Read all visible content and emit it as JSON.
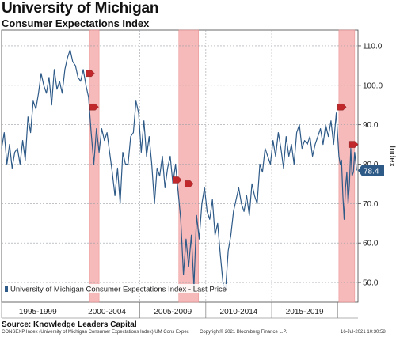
{
  "header": {
    "title": "University of Michigan",
    "subtitle": "Consumer Expectations Index"
  },
  "footer": {
    "source": "Source: Knowledge Leaders Capital",
    "ticker": "CONSEXP Index (University of Michigan Consumer Expectations Index) UM Cons Expec",
    "copyright": "Copyright© 2021 Bloomberg Finance L.P.",
    "date": "16-Jul-2021 10:30:58"
  },
  "colors": {
    "line": "#2e5a88",
    "recession": "#f6b3b3",
    "recession_edge": "#e88c8c",
    "marker": "#c0282b",
    "grid": "#9aa0a6",
    "last_price_box": "#2e5a88"
  },
  "chart_data": {
    "type": "line",
    "title": "University of Michigan",
    "subtitle": "Consumer Expectations Index",
    "ylabel": "Index",
    "ylim": [
      45,
      114
    ],
    "yticks": [
      50,
      60,
      70,
      80,
      90,
      100,
      110
    ],
    "ytick_labels": [
      "50.0",
      "60.0",
      "70.0",
      "80.0",
      "90.0",
      "100.0",
      "110.0"
    ],
    "xlim": [
      1994.5,
      2021.55
    ],
    "x_bands": [
      {
        "label": "1995-1999",
        "start": 1994.5,
        "end": 2000.0
      },
      {
        "label": "2000-2004",
        "start": 2000.0,
        "end": 2005.0
      },
      {
        "label": "2005-2009",
        "start": 2005.0,
        "end": 2010.0
      },
      {
        "label": "2010-2014",
        "start": 2010.0,
        "end": 2015.0
      },
      {
        "label": "2015-2019",
        "start": 2015.0,
        "end": 2020.0
      }
    ],
    "grid": true,
    "legend": {
      "placement": "bottom-left",
      "entries": [
        "University of Michigan Consumer Expectations Index - Last Price"
      ]
    },
    "last_price": {
      "value": 78.4,
      "label": "78.4"
    },
    "recessions": [
      {
        "start": 2001.2,
        "end": 2001.9
      },
      {
        "start": 2007.95,
        "end": 2009.45
      },
      {
        "start": 2020.1,
        "end": 2021.3
      }
    ],
    "markers": [
      {
        "x": 2001.2,
        "y": 103
      },
      {
        "x": 2001.5,
        "y": 94.5
      },
      {
        "x": 2007.8,
        "y": 76
      },
      {
        "x": 2008.7,
        "y": 75
      },
      {
        "x": 2020.3,
        "y": 94.5
      },
      {
        "x": 2021.2,
        "y": 85
      }
    ],
    "series": [
      {
        "name": "University of Michigan Consumer Expectations Index - Last Price",
        "x": [
          1994.5,
          1994.7,
          1994.9,
          1995.1,
          1995.3,
          1995.5,
          1995.7,
          1995.9,
          1996.1,
          1996.3,
          1996.5,
          1996.7,
          1996.9,
          1997.1,
          1997.3,
          1997.5,
          1997.7,
          1997.9,
          1998.1,
          1998.3,
          1998.5,
          1998.7,
          1998.9,
          1999.1,
          1999.3,
          1999.5,
          1999.7,
          1999.9,
          2000.1,
          2000.3,
          2000.5,
          2000.7,
          2000.9,
          2001.1,
          2001.3,
          2001.5,
          2001.7,
          2001.9,
          2002.1,
          2002.3,
          2002.5,
          2002.7,
          2002.9,
          2003.1,
          2003.3,
          2003.5,
          2003.7,
          2003.9,
          2004.1,
          2004.3,
          2004.5,
          2004.7,
          2004.9,
          2005.1,
          2005.3,
          2005.5,
          2005.7,
          2005.9,
          2006.1,
          2006.3,
          2006.5,
          2006.7,
          2006.9,
          2007.1,
          2007.3,
          2007.5,
          2007.7,
          2007.9,
          2008.1,
          2008.3,
          2008.5,
          2008.7,
          2008.9,
          2009.1,
          2009.3,
          2009.5,
          2009.7,
          2009.9,
          2010.1,
          2010.3,
          2010.5,
          2010.7,
          2010.9,
          2011.1,
          2011.3,
          2011.5,
          2011.7,
          2011.9,
          2012.1,
          2012.3,
          2012.5,
          2012.7,
          2012.9,
          2013.1,
          2013.3,
          2013.5,
          2013.7,
          2013.9,
          2014.1,
          2014.3,
          2014.5,
          2014.7,
          2014.9,
          2015.1,
          2015.3,
          2015.5,
          2015.7,
          2015.9,
          2016.1,
          2016.3,
          2016.5,
          2016.7,
          2016.9,
          2017.1,
          2017.3,
          2017.5,
          2017.7,
          2017.9,
          2018.1,
          2018.3,
          2018.5,
          2018.7,
          2018.9,
          2019.1,
          2019.3,
          2019.5,
          2019.7,
          2019.9,
          2020.1,
          2020.2,
          2020.3,
          2020.4,
          2020.5,
          2020.6,
          2020.7,
          2020.8,
          2020.9,
          2021.0,
          2021.1,
          2021.2,
          2021.3,
          2021.45
        ],
        "values": [
          84,
          88,
          80,
          85,
          79,
          83,
          84,
          80,
          86,
          81,
          92,
          88,
          96,
          94,
          98,
          103,
          100,
          98,
          102,
          95,
          104,
          99,
          101,
          98,
          104,
          107,
          109,
          106,
          105,
          102,
          101,
          104,
          100,
          97,
          88,
          80,
          89,
          83,
          89,
          86,
          88,
          83,
          78,
          72,
          79,
          70,
          83,
          80,
          80,
          87,
          88,
          96,
          93,
          83,
          91,
          82,
          87,
          80,
          70,
          79,
          77,
          82,
          74,
          79,
          82,
          75,
          80,
          73,
          66,
          52,
          61,
          54,
          62,
          49,
          67,
          61,
          70,
          74,
          68,
          66,
          71,
          62,
          65,
          57,
          50,
          48,
          58,
          62,
          68,
          71,
          74,
          70,
          68,
          72,
          67,
          75,
          72,
          70,
          80,
          78,
          84,
          82,
          80,
          86,
          82,
          88,
          84,
          79,
          87,
          82,
          85,
          80,
          88,
          90,
          84,
          86,
          85,
          87,
          82,
          85,
          87,
          89,
          85,
          90,
          87,
          91,
          85,
          93,
          82,
          80,
          81,
          72,
          66,
          74,
          78,
          70,
          75,
          84,
          77,
          78,
          83,
          78.4
        ]
      }
    ]
  }
}
